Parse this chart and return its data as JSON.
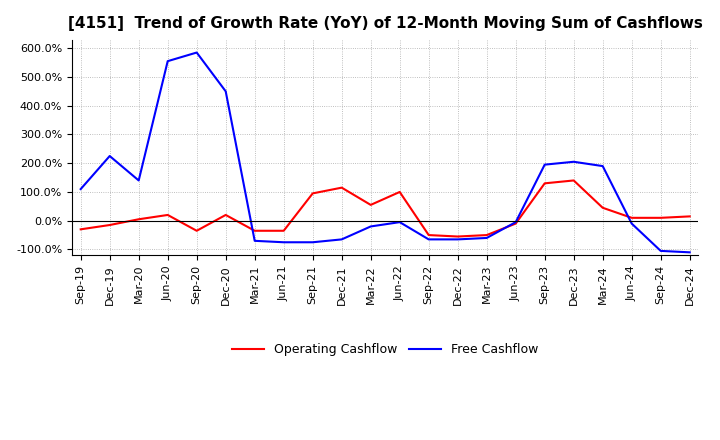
{
  "title": "[4151]  Trend of Growth Rate (YoY) of 12-Month Moving Sum of Cashflows",
  "x_labels": [
    "Sep-19",
    "Dec-19",
    "Mar-20",
    "Jun-20",
    "Sep-20",
    "Dec-20",
    "Mar-21",
    "Jun-21",
    "Sep-21",
    "Dec-21",
    "Mar-22",
    "Jun-22",
    "Sep-22",
    "Dec-22",
    "Mar-23",
    "Jun-23",
    "Sep-23",
    "Dec-23",
    "Mar-24",
    "Jun-24",
    "Sep-24",
    "Dec-24"
  ],
  "operating_cashflow": [
    -30,
    -15,
    5,
    20,
    -35,
    20,
    -35,
    -35,
    95,
    115,
    55,
    100,
    -50,
    -55,
    -50,
    -10,
    130,
    140,
    45,
    10,
    10,
    15
  ],
  "free_cashflow": [
    110,
    225,
    140,
    555,
    585,
    450,
    -70,
    -75,
    -75,
    -65,
    -20,
    -5,
    -65,
    -65,
    -60,
    -5,
    195,
    205,
    190,
    -10,
    -105,
    -110
  ],
  "ylim": [
    -120,
    630
  ],
  "yticks": [
    -100,
    0,
    100,
    200,
    300,
    400,
    500,
    600
  ],
  "operating_color": "#ff0000",
  "free_color": "#0000ff",
  "background_color": "#ffffff",
  "grid_color": "#aaaaaa",
  "legend_labels": [
    "Operating Cashflow",
    "Free Cashflow"
  ],
  "title_fontsize": 11,
  "tick_fontsize": 8,
  "legend_fontsize": 9
}
